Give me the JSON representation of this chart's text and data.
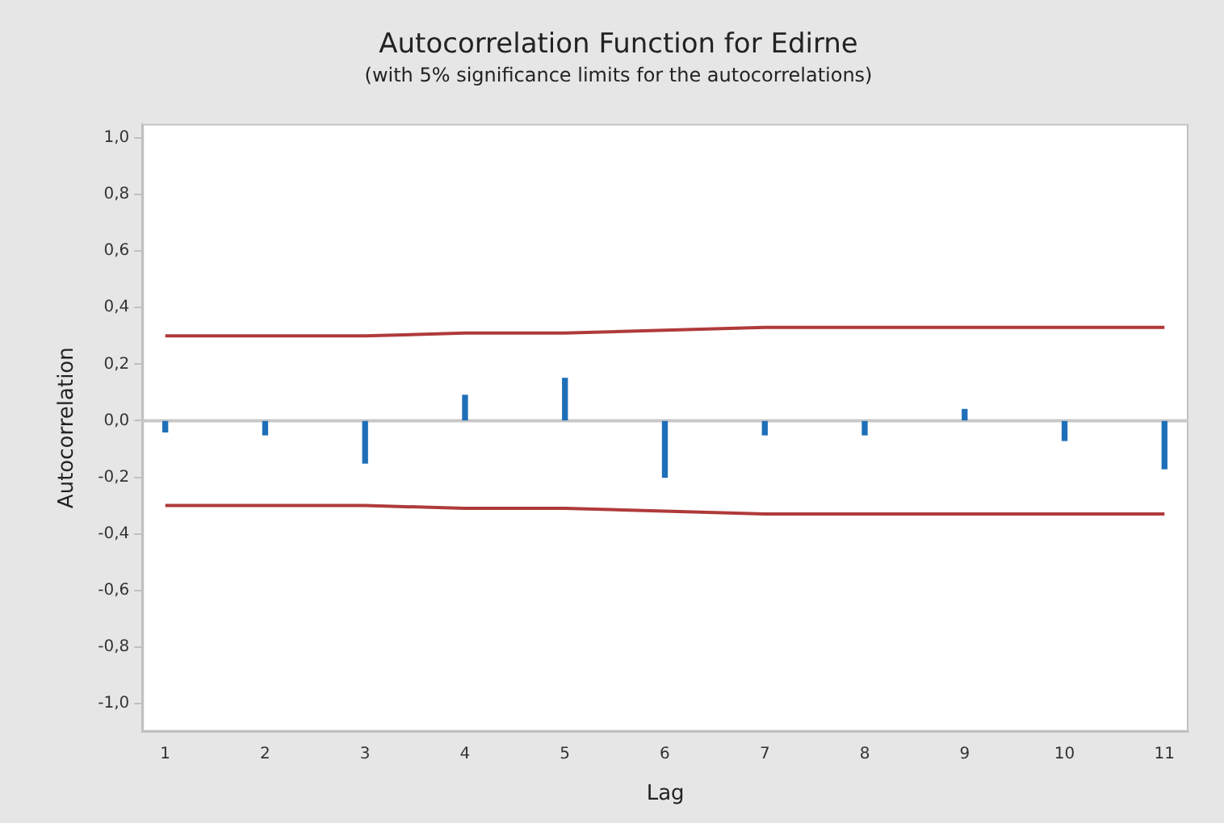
{
  "chart_data": {
    "type": "bar",
    "title": "Autocorrelation Function for Edirne",
    "subtitle": "(with 5% significance limits for the autocorrelations)",
    "xlabel": "Lag",
    "ylabel": "Autocorrelation",
    "x": [
      1,
      2,
      3,
      4,
      5,
      6,
      7,
      8,
      9,
      10,
      11
    ],
    "series": [
      {
        "color": "#1f6fb8",
        "values": [
          -0.04,
          -0.05,
          -0.15,
          0.09,
          0.15,
          -0.2,
          -0.05,
          -0.05,
          0.04,
          -0.07,
          -0.17
        ]
      },
      {
        "type": "line",
        "color": "#b03a3a",
        "values": [
          0.3,
          0.3,
          0.3,
          0.31,
          0.31,
          0.32,
          0.33,
          0.33,
          0.33,
          0.33,
          0.33
        ]
      },
      {
        "type": "line",
        "color": "#b03a3a",
        "values": [
          -0.3,
          -0.3,
          -0.3,
          -0.31,
          -0.31,
          -0.32,
          -0.33,
          -0.33,
          -0.33,
          -0.33,
          -0.33
        ]
      }
    ],
    "marker": "none",
    "line_style": "solid",
    "grid": false,
    "legend": false,
    "ref_lines": [
      {
        "axis": "y",
        "value": 0,
        "color": "#c8c8c8"
      }
    ],
    "xlim": [
      0.77,
      11.24
    ],
    "xticks": [
      1,
      2,
      3,
      4,
      5,
      6,
      7,
      8,
      9,
      10,
      11
    ],
    "ylim": [
      -1.1,
      1.05
    ],
    "yticks": [
      {
        "value": -1,
        "label": "-1,0"
      },
      {
        "value": -0.8,
        "label": "-0,8"
      },
      {
        "value": -0.6,
        "label": "-0,6"
      },
      {
        "value": -0.4,
        "label": "-0,4"
      },
      {
        "value": -0.2,
        "label": "-0,2"
      },
      {
        "value": 0,
        "label": "0,0"
      },
      {
        "value": 0.2,
        "label": "0,2"
      },
      {
        "value": 0.4,
        "label": "0,4"
      },
      {
        "value": 0.6,
        "label": "0,6"
      },
      {
        "value": 0.8,
        "label": "0,8"
      },
      {
        "value": 1,
        "label": "1,0"
      }
    ]
  }
}
